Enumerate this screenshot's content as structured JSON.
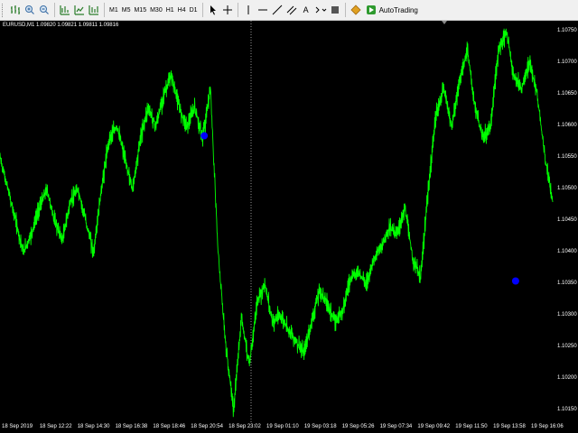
{
  "toolbar": {
    "timeframes": [
      "M1",
      "M5",
      "M15",
      "M30",
      "H1",
      "H4",
      "D1"
    ],
    "font_button_label": "A",
    "autotrading_label": "AutoTrading"
  },
  "chart_info": {
    "symbol_line": "EURUSD,M1  1.09820 1.09821 1.09811 1.09816"
  },
  "colors": {
    "background": "#000000",
    "candles": "#00ff00",
    "marker": "#0000ff",
    "axis_text": "#ffffff"
  },
  "chart_data": {
    "type": "line",
    "title": "EURUSD,M1",
    "ylim": [
      1.1015,
      1.1075
    ],
    "y_ticks": [
      "1.10750",
      "1.10700",
      "1.10650",
      "1.10600",
      "1.10550",
      "1.10500",
      "1.10450",
      "1.10400",
      "1.10350",
      "1.10300",
      "1.10250",
      "1.10200",
      "1.10150"
    ],
    "x_ticks": [
      "18 Sep 2019",
      "18 Sep 12:22",
      "18 Sep 14:30",
      "18 Sep 16:38",
      "18 Sep 18:46",
      "18 Sep 20:54",
      "18 Sep 23:02",
      "19 Sep 01:10",
      "19 Sep 03:18",
      "19 Sep 05:26",
      "19 Sep 07:34",
      "19 Sep 09:42",
      "19 Sep 11:50",
      "19 Sep 13:58",
      "19 Sep 16:06"
    ],
    "series": [
      {
        "name": "",
        "values": [
          1.1055,
          1.105,
          1.1045,
          1.104,
          1.1043,
          1.1047,
          1.105,
          1.1045,
          1.1042,
          1.1048,
          1.105,
          1.1045,
          1.104,
          1.105,
          1.1058,
          1.106,
          1.1055,
          1.105,
          1.1058,
          1.1063,
          1.106,
          1.1065,
          1.1068,
          1.1063,
          1.106,
          1.1063,
          1.1058,
          1.1066,
          1.104,
          1.1025,
          1.1015,
          1.103,
          1.1022,
          1.1032,
          1.1035,
          1.1029,
          1.103,
          1.1028,
          1.1026,
          1.1024,
          1.1029,
          1.1034,
          1.1032,
          1.1029,
          1.1031,
          1.1036,
          1.1037,
          1.1035,
          1.1039,
          1.1041,
          1.1044,
          1.1043,
          1.1047,
          1.1039,
          1.1036,
          1.105,
          1.1062,
          1.1066,
          1.106,
          1.1067,
          1.1072,
          1.1063,
          1.1058,
          1.106,
          1.1072,
          1.1075,
          1.1068,
          1.1066,
          1.107,
          1.1065,
          1.1055,
          1.1048
        ]
      }
    ],
    "markers": [
      {
        "x_index": 26,
        "y": 1.10585
      },
      {
        "x_index": 66,
        "y": 1.10355
      }
    ],
    "grid": false,
    "period_separator": "18 Sep 23:02"
  }
}
